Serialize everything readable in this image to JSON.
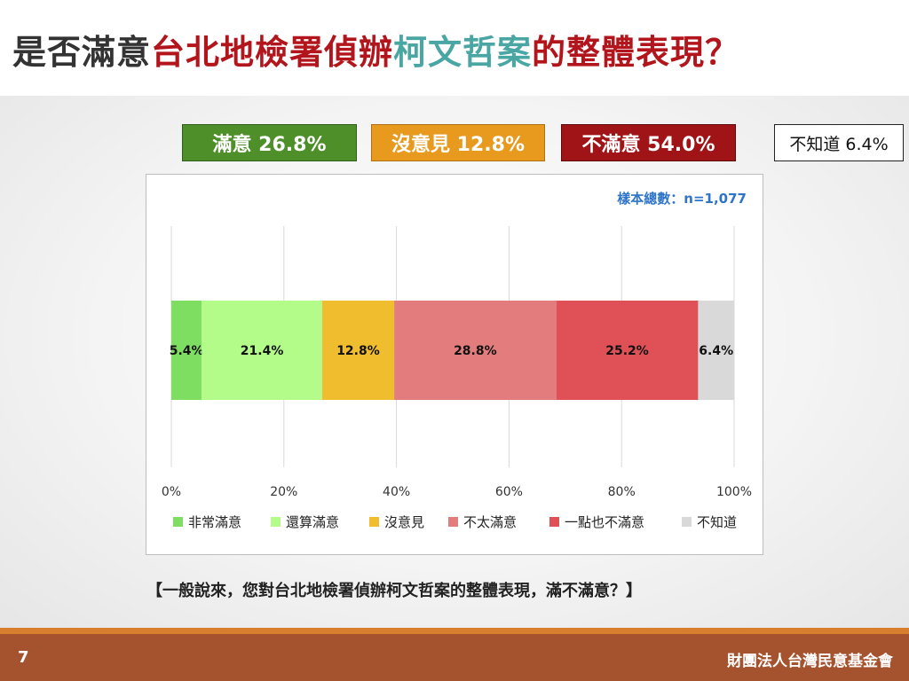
{
  "title": {
    "part1": "是否滿意",
    "part2": "台北地檢署偵辦",
    "part3": "柯文哲案",
    "part4": "的整體表現",
    "part5": "？"
  },
  "summary": [
    {
      "label": "滿意 26.8%",
      "bg": "#4e8f2a",
      "fg": "#ffffff"
    },
    {
      "label": "沒意見 12.8%",
      "bg": "#e89a1f",
      "fg": "#ffffff"
    },
    {
      "label": "不滿意 54.0%",
      "bg": "#a01417",
      "fg": "#ffffff"
    },
    {
      "label": "不知道 6.4%",
      "bg": "#ffffff",
      "fg": "#111111"
    }
  ],
  "sample_note": "樣本總數：n=1,077",
  "chart_data": {
    "type": "bar",
    "orientation": "horizontal-stacked-100",
    "xlim": [
      0,
      100
    ],
    "xticks": [
      "0%",
      "20%",
      "40%",
      "60%",
      "80%",
      "100%"
    ],
    "grid": true,
    "legend_position": "bottom",
    "series": [
      {
        "name": "非常滿意",
        "value": 5.4,
        "label": "5.4%",
        "color": "#7ede62"
      },
      {
        "name": "還算滿意",
        "value": 21.4,
        "label": "21.4%",
        "color": "#b3fc8a"
      },
      {
        "name": "沒意見",
        "value": 12.8,
        "label": "12.8%",
        "color": "#f0bd2f"
      },
      {
        "name": "不太滿意",
        "value": 28.8,
        "label": "28.8%",
        "color": "#e37d7d"
      },
      {
        "name": "一點也不滿意",
        "value": 25.2,
        "label": "25.2%",
        "color": "#df5157"
      },
      {
        "name": "不知道",
        "value": 6.4,
        "label": "6.4%",
        "color": "#d9d9d9"
      }
    ]
  },
  "question": "【一般說來，您對台北地檢署偵辦柯文哲案的整體表現，滿不滿意？】",
  "footer": {
    "page": "7",
    "org": "財團法人台灣民意基金會"
  }
}
